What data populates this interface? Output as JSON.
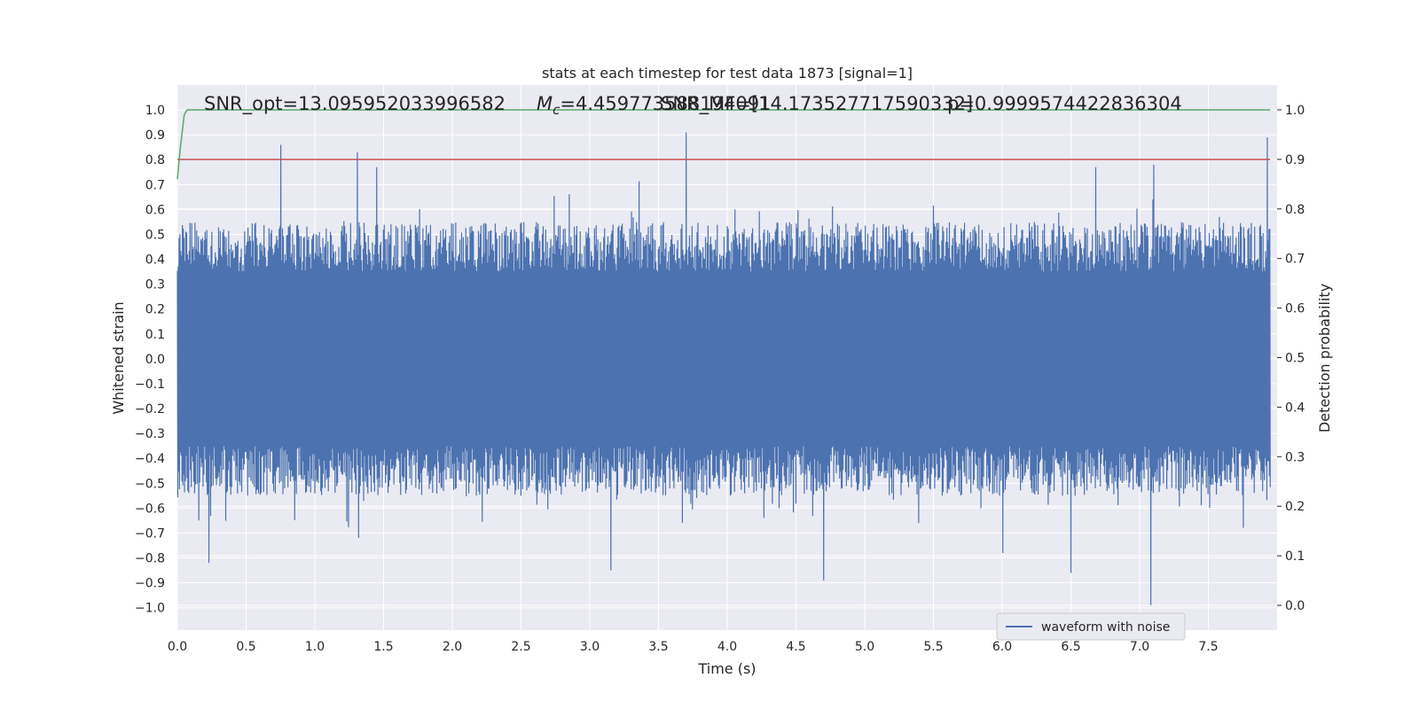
{
  "chart_data": {
    "type": "line",
    "title": "stats at each timestep for test data 1873 [signal=1]",
    "xlabel": "Time (s)",
    "ylabel": "Whitened strain",
    "y2label": "Detection probability",
    "xlim": [
      0.0,
      8.0
    ],
    "ylim": [
      -1.09,
      1.1
    ],
    "y2lim": [
      -0.05,
      1.05
    ],
    "x_ticks": [
      "0.0",
      "0.5",
      "1.0",
      "1.5",
      "2.0",
      "2.5",
      "3.0",
      "3.5",
      "4.0",
      "4.5",
      "5.0",
      "5.5",
      "6.0",
      "6.5",
      "7.0",
      "7.5"
    ],
    "y_ticks": [
      "1.0",
      "0.9",
      "0.8",
      "0.7",
      "0.6",
      "0.5",
      "0.4",
      "0.3",
      "0.2",
      "0.1",
      "0.0",
      "−0.1",
      "−0.2",
      "−0.3",
      "−0.4",
      "−0.5",
      "−0.6",
      "−0.7",
      "−0.8",
      "−0.9",
      "−1.0"
    ],
    "y2_ticks": [
      "1.0",
      "0.9",
      "0.8",
      "0.7",
      "0.6",
      "0.5",
      "0.4",
      "0.3",
      "0.2",
      "0.1",
      "0.0"
    ],
    "grid": true,
    "legend_position": "lower-right",
    "annotations": {
      "snr_opt": "SNR_opt=13.095952033996582",
      "mc_prefix": "M",
      "mc_sub": "c",
      "mc_value": "=4.459773588194091",
      "snr_mf": "SNR_MF=[14.173527717590332]",
      "p": "p=0.9999574422836304"
    },
    "series": [
      {
        "name": "waveform with noise",
        "color": "#4c72b0",
        "axis": "left",
        "noise_envelope": [
          0.35,
          0.55
        ],
        "peaks": [
          {
            "x": 0.75,
            "y": 0.86
          },
          {
            "x": 1.31,
            "y": 0.83
          },
          {
            "x": 1.45,
            "y": 0.77
          },
          {
            "x": 3.7,
            "y": 0.91
          },
          {
            "x": 6.68,
            "y": 0.77
          },
          {
            "x": 7.1,
            "y": 0.78
          },
          {
            "x": 7.93,
            "y": 0.89
          },
          {
            "x": 0.23,
            "y": -0.82
          },
          {
            "x": 3.15,
            "y": -0.85
          },
          {
            "x": 4.7,
            "y": -0.89
          },
          {
            "x": 6.5,
            "y": -0.86
          },
          {
            "x": 7.08,
            "y": -0.99
          },
          {
            "x": 6.0,
            "y": -0.78
          }
        ]
      },
      {
        "color": "#c44e52",
        "axis": "right",
        "x": [
          0.0,
          7.95
        ],
        "y": [
          0.9,
          0.9
        ]
      },
      {
        "color": "#55a868",
        "axis": "right",
        "x": [
          0.0,
          0.02,
          0.05,
          0.07,
          0.5,
          7.95
        ],
        "y": [
          0.86,
          0.92,
          0.99,
          1.0,
          1.0,
          1.0
        ]
      }
    ]
  }
}
